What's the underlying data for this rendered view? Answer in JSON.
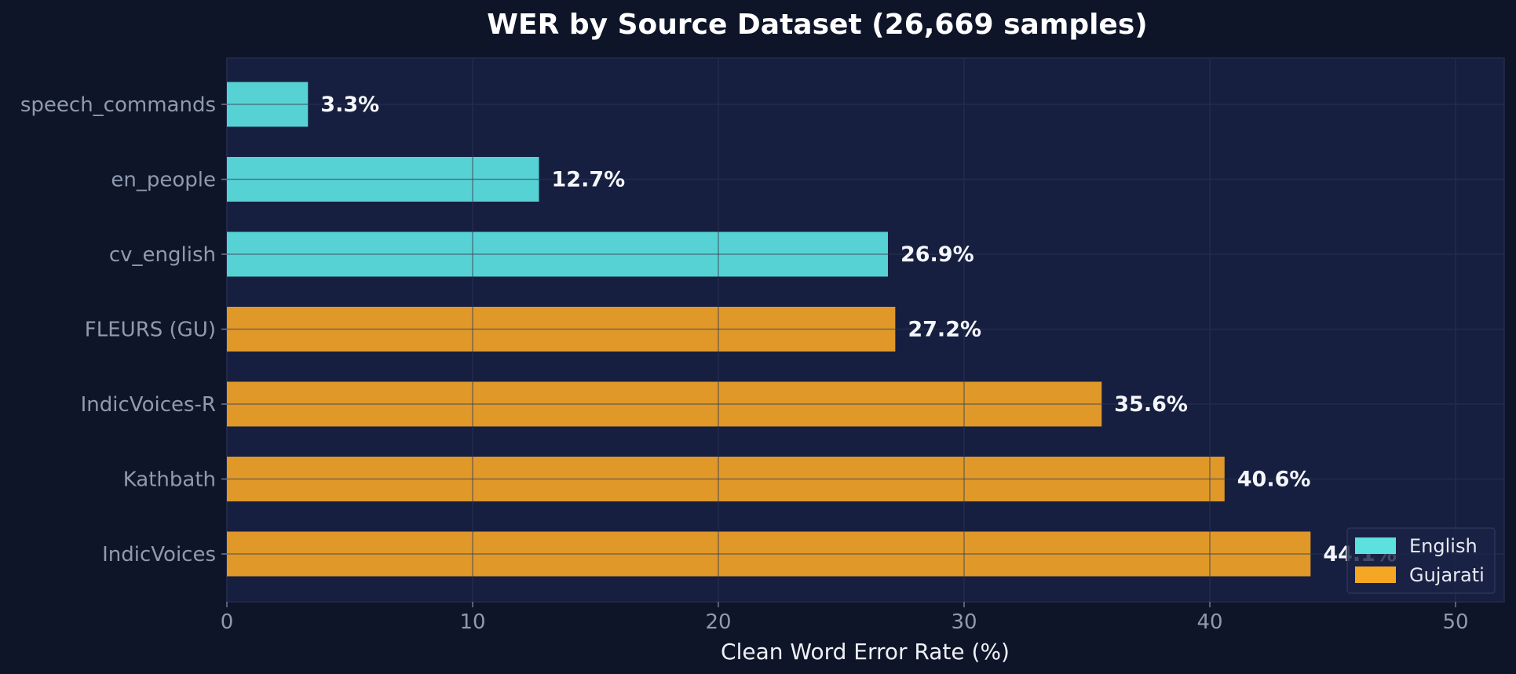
{
  "chart_data": {
    "type": "bar",
    "orientation": "horizontal",
    "title": "WER by Source Dataset (26,669 samples)",
    "xlabel": "Clean Word Error Rate (%)",
    "ylabel": "",
    "xlim": [
      0,
      52
    ],
    "xticks": [
      0,
      10,
      20,
      30,
      40,
      50
    ],
    "grid": true,
    "legend_position": "bottom-right",
    "categories": [
      "speech_commands",
      "en_people",
      "cv_english",
      "FLEURS (GU)",
      "IndicVoices-R",
      "Kathbath",
      "IndicVoices"
    ],
    "values": [
      3.3,
      12.7,
      26.9,
      27.2,
      35.6,
      40.6,
      44.1
    ],
    "value_labels": [
      "3.3%",
      "12.7%",
      "26.9%",
      "27.2%",
      "35.6%",
      "40.6%",
      "44.1%"
    ],
    "groups": [
      "English",
      "English",
      "English",
      "Gujarati",
      "Gujarati",
      "Gujarati",
      "Gujarati"
    ],
    "legend": [
      {
        "name": "English",
        "color": "#5ce0e0"
      },
      {
        "name": "Gujarati",
        "color": "#f5a623"
      }
    ],
    "bar_colors": {
      "English": "#56d2d4",
      "Gujarati": "#e09828"
    }
  },
  "colors": {
    "background": "#0f1529",
    "plot_background": "#161f40",
    "grid": "#2a3352"
  }
}
